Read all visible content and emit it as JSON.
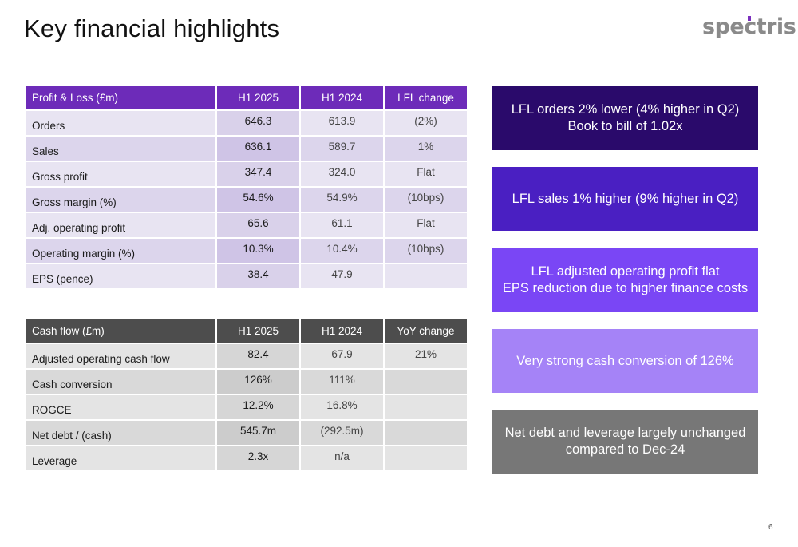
{
  "page_title": "Key financial highlights",
  "logo_text": "spectris",
  "profit_loss_table": {
    "headers": [
      "Profit & Loss (£m)",
      "H1 2025",
      "H1 2024",
      "LFL change"
    ],
    "rows": [
      [
        "Orders",
        "646.3",
        "613.9",
        "(2%)"
      ],
      [
        "Sales",
        "636.1",
        "589.7",
        "1%"
      ],
      [
        "Gross profit",
        "347.4",
        "324.0",
        "Flat"
      ],
      [
        "Gross margin (%)",
        "54.6%",
        "54.9%",
        "(10bps)"
      ],
      [
        "Adj. operating profit",
        "65.6",
        "61.1",
        "Flat"
      ],
      [
        "Operating margin (%)",
        "10.3%",
        "10.4%",
        "(10bps)"
      ],
      [
        "EPS (pence)",
        "38.4",
        "47.9",
        ""
      ]
    ]
  },
  "cash_flow_table": {
    "headers": [
      "Cash flow (£m)",
      "H1 2025",
      "H1 2024",
      "YoY change"
    ],
    "rows": [
      [
        "Adjusted operating cash flow",
        "82.4",
        "67.9",
        "21%"
      ],
      [
        "Cash conversion",
        "126%",
        "111%",
        ""
      ],
      [
        "ROGCE",
        "12.2%",
        "16.8%",
        ""
      ],
      [
        "Net debt / (cash)",
        "545.7m",
        "(292.5m)",
        ""
      ],
      [
        "Leverage",
        "2.3x",
        "n/a",
        ""
      ]
    ]
  },
  "highlights": [
    {
      "text": "LFL orders 2% lower (4% higher in Q2)\nBook to bill of 1.02x",
      "color": "#2a0a6b"
    },
    {
      "text": "LFL sales 1% higher (9% higher in Q2)",
      "color": "#4a1fc2"
    },
    {
      "text": "LFL adjusted operating profit flat\nEPS reduction due to higher finance costs",
      "color": "#7a46f5"
    },
    {
      "text": "Very strong cash conversion of 126%",
      "color": "#a583f7"
    },
    {
      "text": "Net debt and leverage largely unchanged\ncompared to Dec-24",
      "color": "#777777"
    }
  ],
  "page_number": "6"
}
